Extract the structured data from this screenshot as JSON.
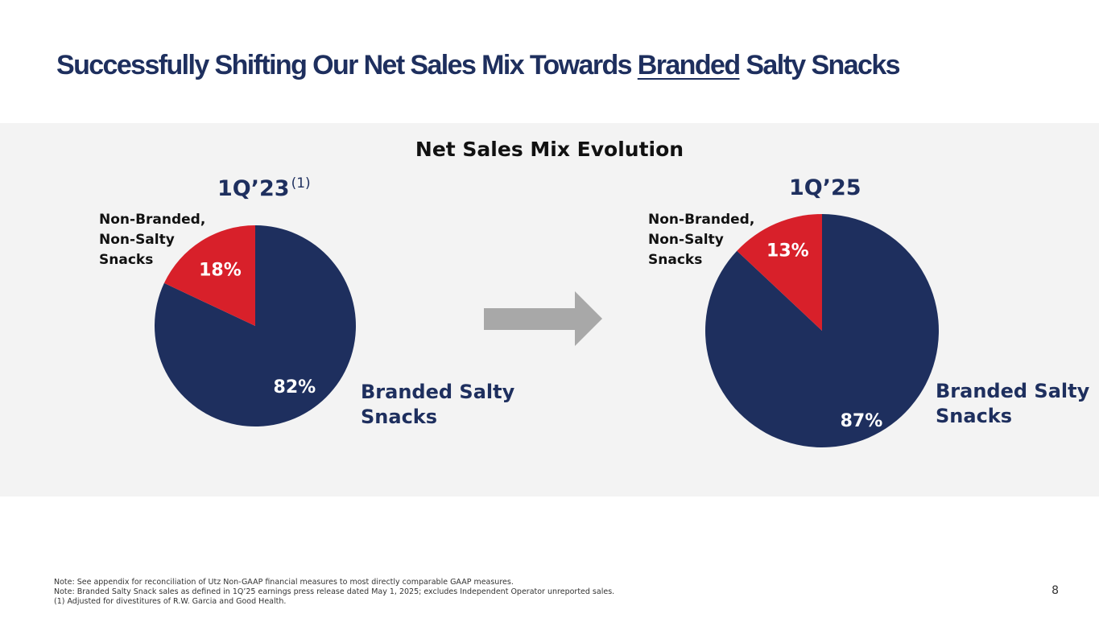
{
  "slide": {
    "title_pre": "Successfully Shifting Our Net Sales Mix Towards ",
    "title_emph": "Branded",
    "title_post": " Salty Snacks",
    "panel_title": "Net Sales Mix Evolution",
    "page_number": "8"
  },
  "notes": [
    "Note: See appendix for reconciliation of Utz Non-GAAP financial measures to most directly comparable GAAP measures.",
    "Note: Branded Salty Snack sales as defined in 1Q’25 earnings press release dated May 1, 2025; excludes Independent Operator unreported sales.",
    "(1) Adjusted for divestitures of R.W. Garcia and Good Health."
  ],
  "colors": {
    "navy": "#1e2f5e",
    "red": "#d8202a",
    "arrow": "#a8a8a8",
    "panel": "#f3f3f3"
  },
  "chart_data": [
    {
      "type": "pie",
      "title": "1Q’23",
      "footnote_marker": "(1)",
      "categories": [
        "Branded Salty Snacks",
        "Non-Branded, Non-Salty Snacks"
      ],
      "values": [
        82,
        18
      ],
      "labels": [
        "82%",
        "18%"
      ],
      "legend": {
        "branded_line1": "Branded Salty",
        "branded_line2": "Snacks",
        "nonbranded_line1": "Non-Branded,",
        "nonbranded_line2": "Non-Salty",
        "nonbranded_line3": "Snacks"
      }
    },
    {
      "type": "pie",
      "title": "1Q’25",
      "categories": [
        "Branded Salty Snacks",
        "Non-Branded, Non-Salty Snacks"
      ],
      "values": [
        87,
        13
      ],
      "labels": [
        "87%",
        "13%"
      ],
      "legend": {
        "branded_line1": "Branded Salty",
        "branded_line2": "Snacks",
        "nonbranded_line1": "Non-Branded,",
        "nonbranded_line2": "Non-Salty",
        "nonbranded_line3": "Snacks"
      }
    }
  ]
}
